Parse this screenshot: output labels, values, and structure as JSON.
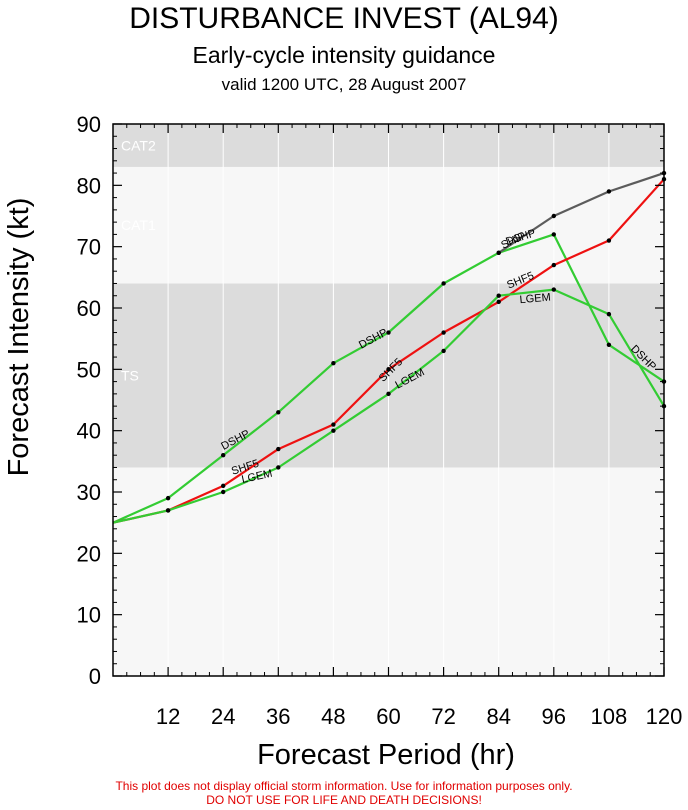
{
  "header": {
    "title": "DISTURBANCE INVEST (AL94)",
    "subtitle": "Early-cycle intensity guidance",
    "valid": "valid 1200 UTC, 28 August 2007"
  },
  "footer": {
    "line1": "This plot does not display official storm information. Use for information purposes only.",
    "line2": "DO NOT USE FOR LIFE AND DEATH DECISIONS!"
  },
  "colors": {
    "band_dark": "#dcdcdc",
    "band_light": "#f7f7f7",
    "band_label": "#ffffff",
    "dship": "#5c5c5c",
    "shf5": "#ee1111",
    "lgem": "#33cc33",
    "green_dship": "#33cc33"
  },
  "chart_data": {
    "type": "line",
    "xlabel": "Forecast Period (hr)",
    "ylabel": "Forecast Intensity (kt)",
    "xlim": [
      0,
      120
    ],
    "ylim": [
      0,
      90
    ],
    "xticks": [
      12,
      24,
      36,
      48,
      60,
      72,
      84,
      96,
      108,
      120
    ],
    "yticks": [
      0,
      10,
      20,
      30,
      40,
      50,
      60,
      70,
      80,
      90
    ],
    "bands": [
      {
        "label": "TS",
        "from": 34,
        "to": 64,
        "shade": "dark"
      },
      {
        "label": "CAT1",
        "from": 64,
        "to": 83,
        "shade": "light"
      },
      {
        "label": "CAT2",
        "from": 83,
        "to": 90,
        "shade": "dark"
      }
    ],
    "series": [
      {
        "name": "DSHP",
        "color": "#33cc33",
        "x": [
          0,
          12,
          24,
          36,
          48,
          60,
          72,
          84,
          96,
          108,
          120
        ],
        "y": [
          25,
          29,
          36,
          43,
          51,
          56,
          64,
          69,
          72,
          54,
          48
        ]
      },
      {
        "name": "DSHP",
        "color": "#5c5c5c",
        "x": [
          84,
          96,
          108,
          120
        ],
        "y": [
          69,
          75,
          79,
          82
        ]
      },
      {
        "name": "SHF5",
        "color": "#ee1111",
        "x": [
          0,
          12,
          24,
          36,
          48,
          60,
          72,
          84,
          96,
          108,
          120
        ],
        "y": [
          25,
          27,
          31,
          37,
          41,
          50,
          56,
          61,
          67,
          71,
          81
        ]
      },
      {
        "name": "LGEM",
        "color": "#33cc33",
        "x": [
          0,
          12,
          24,
          36,
          48,
          60,
          72,
          84,
          96,
          108,
          120
        ],
        "y": [
          25,
          27,
          30,
          34,
          40,
          46,
          53,
          62,
          63,
          59,
          44
        ]
      }
    ],
    "annotations": [
      {
        "text": "DSHP",
        "x": 27,
        "y": 38,
        "angle": -28
      },
      {
        "text": "DSHP",
        "x": 57,
        "y": 54.5,
        "angle": -28
      },
      {
        "text": "DSHP",
        "x": 89,
        "y": 71,
        "angle": -18
      },
      {
        "text": "DSHP",
        "x": 115,
        "y": 51.5,
        "angle": 45
      },
      {
        "text": "SHIP",
        "x": 87.5,
        "y": 70.5,
        "angle": -25
      },
      {
        "text": "SHF5",
        "x": 29,
        "y": 33.5,
        "angle": -18
      },
      {
        "text": "SHF5",
        "x": 61,
        "y": 49.5,
        "angle": -45
      },
      {
        "text": "SHF5",
        "x": 89,
        "y": 64,
        "angle": -22
      },
      {
        "text": "LGEM",
        "x": 31.5,
        "y": 32,
        "angle": -12
      },
      {
        "text": "LGEM",
        "x": 65,
        "y": 48,
        "angle": -28
      },
      {
        "text": "LGEM",
        "x": 92,
        "y": 61,
        "angle": -5
      }
    ]
  }
}
